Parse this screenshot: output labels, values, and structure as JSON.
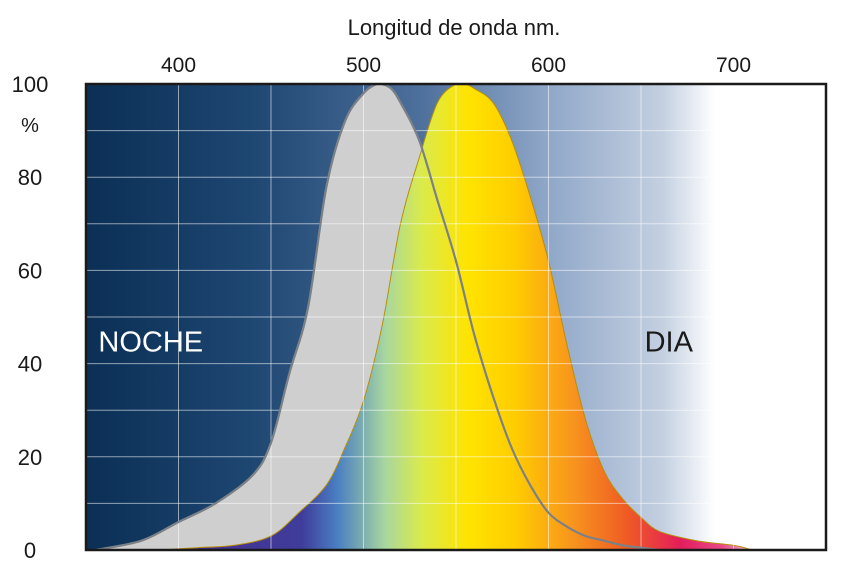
{
  "chart_data": {
    "type": "area",
    "title": "Longitud de onda nm.",
    "xlabel": "Longitud de onda nm.",
    "ylabel": "%",
    "xlim": [
      350,
      750
    ],
    "ylim": [
      0,
      100
    ],
    "x_ticks": [
      400,
      500,
      600,
      700
    ],
    "x_tick_labels": [
      "400",
      "500",
      "600",
      "700"
    ],
    "y_ticks": [
      100,
      80,
      60,
      40,
      20,
      0
    ],
    "y_tick_labels": [
      "100",
      "80",
      "60",
      "40",
      "20",
      "0"
    ],
    "grid": true,
    "annotations": [
      {
        "text": "NOCHE",
        "x": 385,
        "y": 45
      },
      {
        "text": "DIA",
        "x": 665,
        "y": 45
      }
    ],
    "series": [
      {
        "name": "NOCHE",
        "color": "#cfcfcf",
        "x": [
          355,
          380,
          400,
          420,
          440,
          450,
          460,
          470,
          480,
          490,
          500,
          507,
          510,
          515,
          520,
          530,
          540,
          550,
          560,
          570,
          580,
          590,
          600,
          610,
          620,
          630,
          640,
          650,
          660
        ],
        "y": [
          0,
          2,
          6,
          10,
          16,
          23,
          38,
          52,
          78,
          92,
          98,
          100,
          100,
          99,
          96,
          88,
          75,
          62,
          46,
          33,
          22,
          14,
          8,
          5,
          3,
          2,
          1,
          0.5,
          0
        ]
      },
      {
        "name": "DIA",
        "color": "gradient",
        "x": [
          390,
          410,
          430,
          450,
          465,
          480,
          490,
          500,
          510,
          520,
          530,
          540,
          550,
          555,
          560,
          570,
          580,
          590,
          600,
          610,
          620,
          630,
          640,
          650,
          660,
          680,
          700,
          710
        ],
        "y": [
          0,
          0.5,
          1,
          3,
          8,
          14,
          22,
          32,
          48,
          70,
          84,
          96,
          100,
          100,
          99,
          96,
          88,
          76,
          62,
          44,
          28,
          17,
          11,
          7,
          4,
          2,
          1,
          0
        ]
      }
    ]
  }
}
